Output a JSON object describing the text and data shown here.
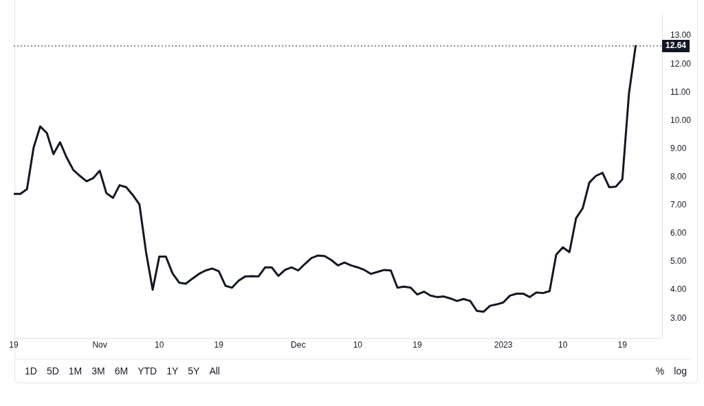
{
  "chart_data": {
    "type": "line",
    "x": [
      "2022-10-19",
      "2022-10-20",
      "2022-10-21",
      "2022-10-22",
      "2022-10-23",
      "2022-10-24",
      "2022-10-25",
      "2022-10-26",
      "2022-10-27",
      "2022-10-28",
      "2022-10-29",
      "2022-10-30",
      "2022-10-31",
      "2022-11-01",
      "2022-11-02",
      "2022-11-03",
      "2022-11-04",
      "2022-11-05",
      "2022-11-06",
      "2022-11-07",
      "2022-11-08",
      "2022-11-09",
      "2022-11-10",
      "2022-11-11",
      "2022-11-12",
      "2022-11-13",
      "2022-11-14",
      "2022-11-15",
      "2022-11-16",
      "2022-11-17",
      "2022-11-18",
      "2022-11-19",
      "2022-11-20",
      "2022-11-21",
      "2022-11-22",
      "2022-11-23",
      "2022-11-24",
      "2022-11-25",
      "2022-11-26",
      "2022-11-27",
      "2022-11-28",
      "2022-11-29",
      "2022-11-30",
      "2022-12-01",
      "2022-12-02",
      "2022-12-03",
      "2022-12-04",
      "2022-12-05",
      "2022-12-06",
      "2022-12-07",
      "2022-12-08",
      "2022-12-09",
      "2022-12-10",
      "2022-12-11",
      "2022-12-12",
      "2022-12-13",
      "2022-12-14",
      "2022-12-15",
      "2022-12-16",
      "2022-12-17",
      "2022-12-18",
      "2022-12-19",
      "2022-12-20",
      "2022-12-21",
      "2022-12-22",
      "2022-12-23",
      "2022-12-24",
      "2022-12-25",
      "2022-12-26",
      "2022-12-27",
      "2022-12-28",
      "2022-12-29",
      "2022-12-30",
      "2022-12-31",
      "2023-01-01",
      "2023-01-02",
      "2023-01-03",
      "2023-01-04",
      "2023-01-05",
      "2023-01-06",
      "2023-01-07",
      "2023-01-08",
      "2023-01-09",
      "2023-01-10",
      "2023-01-11",
      "2023-01-12",
      "2023-01-13",
      "2023-01-14",
      "2023-01-15",
      "2023-01-16",
      "2023-01-17",
      "2023-01-18",
      "2023-01-19",
      "2023-01-20",
      "2023-01-21"
    ],
    "series": [
      {
        "color": "#131722",
        "values": [
          7.4,
          7.4,
          7.57,
          9.04,
          9.79,
          9.56,
          8.81,
          9.23,
          8.69,
          8.25,
          8.04,
          7.85,
          7.96,
          8.22,
          7.43,
          7.26,
          7.71,
          7.64,
          7.36,
          7.03,
          5.34,
          4.01,
          5.18,
          5.18,
          4.59,
          4.26,
          4.22,
          4.4,
          4.57,
          4.69,
          4.76,
          4.66,
          4.15,
          4.08,
          4.33,
          4.48,
          4.49,
          4.48,
          4.8,
          4.8,
          4.5,
          4.71,
          4.8,
          4.69,
          4.92,
          5.13,
          5.22,
          5.2,
          5.06,
          4.87,
          4.97,
          4.87,
          4.8,
          4.71,
          4.57,
          4.64,
          4.71,
          4.69,
          4.08,
          4.12,
          4.08,
          3.84,
          3.94,
          3.8,
          3.75,
          3.77,
          3.7,
          3.61,
          3.68,
          3.61,
          3.26,
          3.23,
          3.44,
          3.49,
          3.56,
          3.8,
          3.87,
          3.87,
          3.75,
          3.91,
          3.89,
          3.96,
          5.25,
          5.51,
          5.34,
          6.54,
          6.89,
          7.8,
          8.04,
          8.15,
          7.64,
          7.66,
          7.92,
          10.96,
          12.64
        ]
      }
    ],
    "xlim": [
      "2022-10-19",
      "2023-01-25"
    ],
    "xticks": [
      {
        "value": "2022-10-19",
        "label": "19"
      },
      {
        "value": "2022-11-01",
        "label": "Nov"
      },
      {
        "value": "2022-11-10",
        "label": "10"
      },
      {
        "value": "2022-11-19",
        "label": "19"
      },
      {
        "value": "2022-12-01",
        "label": "Dec"
      },
      {
        "value": "2022-12-10",
        "label": "10"
      },
      {
        "value": "2022-12-19",
        "label": "19"
      },
      {
        "value": "2023-01-01",
        "label": "2023"
      },
      {
        "value": "2023-01-10",
        "label": "10"
      },
      {
        "value": "2023-01-19",
        "label": "19"
      }
    ],
    "ylim": [
      2.3,
      13.8
    ],
    "yticks": [
      {
        "value": 3,
        "label": "3.00"
      },
      {
        "value": 4,
        "label": "4.00"
      },
      {
        "value": 5,
        "label": "5.00"
      },
      {
        "value": 6,
        "label": "6.00"
      },
      {
        "value": 7,
        "label": "7.00"
      },
      {
        "value": 8,
        "label": "8.00"
      },
      {
        "value": 9,
        "label": "9.00"
      },
      {
        "value": 10,
        "label": "10.00"
      },
      {
        "value": 11,
        "label": "11.00"
      },
      {
        "value": 12,
        "label": "12.00"
      },
      {
        "value": 13,
        "label": "13.00"
      }
    ],
    "ref_lines": [
      {
        "axis": "y",
        "value": 12.64,
        "label": "12.64",
        "color": "#131722",
        "line_style": "dotted"
      }
    ],
    "annotations": [
      "1D",
      "5D",
      "1M",
      "3M",
      "6M",
      "YTD",
      "1Y",
      "5Y",
      "All",
      "%",
      "log"
    ],
    "grid": false,
    "legend": false,
    "marker": "none",
    "line_style": "solid"
  }
}
